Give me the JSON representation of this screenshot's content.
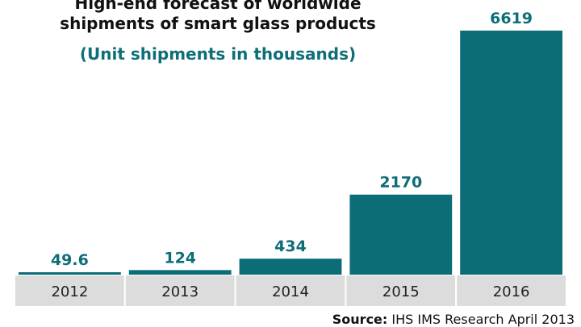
{
  "colors": {
    "bar": "#0d6d77",
    "label": "#0e6e78",
    "category_cell": "#dcdcdc",
    "category_border": "#ffffff",
    "baseline": "#bdbdbd"
  },
  "chart_data": {
    "type": "bar",
    "title": "High-end forecast of worldwide shipments of smart glass products",
    "title_lines": [
      "High-end forecast of worldwide",
      "shipments of smart glass products"
    ],
    "subtitle": "(Unit shipments in thousands)",
    "categories": [
      "2012",
      "2013",
      "2014",
      "2015",
      "2016"
    ],
    "values": [
      49.6,
      124,
      434,
      2170,
      6619
    ],
    "data_labels": [
      "49.6",
      "124",
      "434",
      "2170",
      "6619"
    ],
    "xlabel": "",
    "ylabel": "",
    "ylim": [
      0,
      6619
    ],
    "grid": false,
    "legend": "none",
    "source_label": "Source:",
    "source_text": "IHS IMS Research April 2013"
  }
}
